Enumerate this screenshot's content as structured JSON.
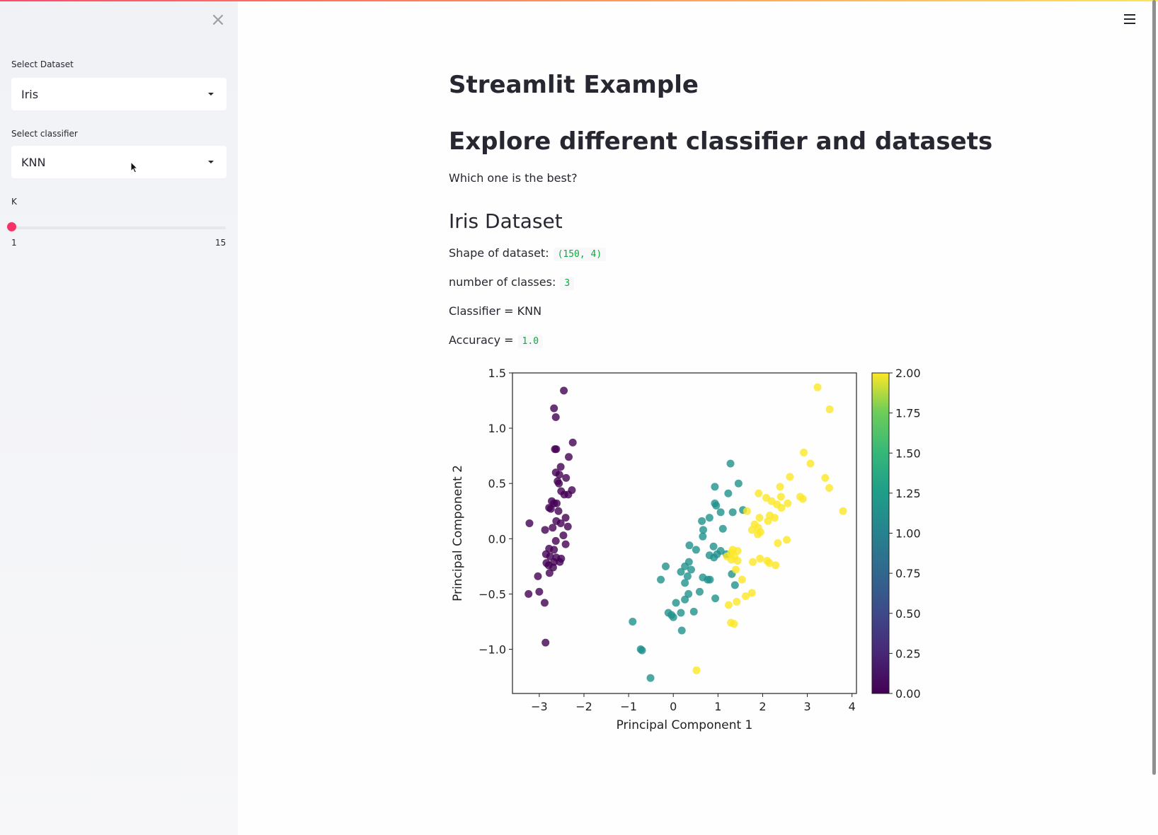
{
  "sidebar": {
    "close_icon": "close-icon",
    "dataset_label": "Select Dataset",
    "dataset_value": "Iris",
    "classifier_label": "Select classifier",
    "classifier_value": "KNN",
    "k_label": "K",
    "k_value": 1,
    "k_min": "1",
    "k_max": "15",
    "accent_color": "#f63366"
  },
  "header": {
    "menu_icon": "hamburger-menu-icon"
  },
  "main": {
    "title": "Streamlit Example",
    "subtitle": "Explore different classifier and datasets",
    "question": "Which one is the best?",
    "dataset_heading": "Iris Dataset",
    "shape_label": "Shape of dataset:",
    "shape_value": "(150, 4)",
    "classes_label": "number of classes:",
    "classes_value": "3",
    "classifier_text": "Classifier = KNN",
    "accuracy_label": "Accuracy =",
    "accuracy_value": "1.0"
  },
  "chart_data": {
    "type": "scatter",
    "xlabel": "Principal Component 1",
    "ylabel": "Principal Component 2",
    "xlim": [
      -3.6,
      4.1
    ],
    "ylim": [
      -1.4,
      1.5
    ],
    "x_ticks": [
      "−3",
      "−2",
      "−1",
      "0",
      "1",
      "2",
      "3",
      "4"
    ],
    "x_tick_values": [
      -3,
      -2,
      -1,
      0,
      1,
      2,
      3,
      4
    ],
    "y_ticks": [
      "1.5",
      "1.0",
      "0.5",
      "0.0",
      "−0.5",
      "−1.0"
    ],
    "y_tick_values": [
      1.5,
      1.0,
      0.5,
      0.0,
      -0.5,
      -1.0
    ],
    "colorbar_ticks": [
      "2.00",
      "1.75",
      "1.50",
      "1.25",
      "1.00",
      "0.75",
      "0.50",
      "0.25",
      "0.00"
    ],
    "colorbar_range": [
      0,
      2
    ],
    "colormap": "viridis",
    "class_colors": [
      "#440154",
      "#21918c",
      "#fde725"
    ],
    "points": [
      {
        "x": -2.45,
        "y": 1.34,
        "c": 0
      },
      {
        "x": -2.67,
        "y": 1.18,
        "c": 0
      },
      {
        "x": -2.63,
        "y": 1.1,
        "c": 0
      },
      {
        "x": -2.25,
        "y": 0.87,
        "c": 0
      },
      {
        "x": -2.65,
        "y": 0.81,
        "c": 0
      },
      {
        "x": -2.62,
        "y": 0.81,
        "c": 0
      },
      {
        "x": -2.34,
        "y": 0.74,
        "c": 0
      },
      {
        "x": -2.52,
        "y": 0.65,
        "c": 0
      },
      {
        "x": -2.63,
        "y": 0.6,
        "c": 0
      },
      {
        "x": -2.55,
        "y": 0.58,
        "c": 0
      },
      {
        "x": -2.4,
        "y": 0.55,
        "c": 0
      },
      {
        "x": -2.59,
        "y": 0.52,
        "c": 0
      },
      {
        "x": -2.56,
        "y": 0.5,
        "c": 0
      },
      {
        "x": -2.27,
        "y": 0.44,
        "c": 0
      },
      {
        "x": -2.51,
        "y": 0.43,
        "c": 0
      },
      {
        "x": -2.44,
        "y": 0.4,
        "c": 0
      },
      {
        "x": -2.35,
        "y": 0.4,
        "c": 0
      },
      {
        "x": -2.72,
        "y": 0.34,
        "c": 0
      },
      {
        "x": -2.67,
        "y": 0.32,
        "c": 0
      },
      {
        "x": -2.61,
        "y": 0.32,
        "c": 0
      },
      {
        "x": -2.78,
        "y": 0.28,
        "c": 0
      },
      {
        "x": -2.74,
        "y": 0.27,
        "c": 0
      },
      {
        "x": -2.57,
        "y": 0.25,
        "c": 0
      },
      {
        "x": -2.41,
        "y": 0.19,
        "c": 0
      },
      {
        "x": -2.62,
        "y": 0.16,
        "c": 0
      },
      {
        "x": -2.52,
        "y": 0.14,
        "c": 0
      },
      {
        "x": -2.36,
        "y": 0.11,
        "c": 0
      },
      {
        "x": -3.22,
        "y": 0.14,
        "c": 0
      },
      {
        "x": -2.87,
        "y": 0.08,
        "c": 0
      },
      {
        "x": -2.7,
        "y": 0.1,
        "c": 0
      },
      {
        "x": -2.46,
        "y": 0.03,
        "c": 0
      },
      {
        "x": -2.63,
        "y": -0.02,
        "c": 0
      },
      {
        "x": -2.41,
        "y": -0.05,
        "c": 0
      },
      {
        "x": -2.78,
        "y": -0.09,
        "c": 0
      },
      {
        "x": -2.67,
        "y": -0.1,
        "c": 0
      },
      {
        "x": -2.85,
        "y": -0.14,
        "c": 0
      },
      {
        "x": -2.76,
        "y": -0.16,
        "c": 0
      },
      {
        "x": -2.62,
        "y": -0.17,
        "c": 0
      },
      {
        "x": -2.51,
        "y": -0.18,
        "c": 0
      },
      {
        "x": -2.84,
        "y": -0.22,
        "c": 0
      },
      {
        "x": -2.67,
        "y": -0.21,
        "c": 0
      },
      {
        "x": -2.54,
        "y": -0.21,
        "c": 0
      },
      {
        "x": -2.79,
        "y": -0.24,
        "c": 0
      },
      {
        "x": -2.69,
        "y": -0.26,
        "c": 0
      },
      {
        "x": -3.03,
        "y": -0.34,
        "c": 0
      },
      {
        "x": -2.77,
        "y": -0.31,
        "c": 0
      },
      {
        "x": -3.24,
        "y": -0.5,
        "c": 0
      },
      {
        "x": -3.0,
        "y": -0.48,
        "c": 0
      },
      {
        "x": -2.88,
        "y": -0.58,
        "c": 0
      },
      {
        "x": -2.86,
        "y": -0.94,
        "c": 0
      },
      {
        "x": 1.28,
        "y": 0.68,
        "c": 1
      },
      {
        "x": 0.93,
        "y": 0.47,
        "c": 1
      },
      {
        "x": 1.46,
        "y": 0.5,
        "c": 1
      },
      {
        "x": 1.23,
        "y": 0.41,
        "c": 1
      },
      {
        "x": 0.93,
        "y": 0.32,
        "c": 1
      },
      {
        "x": 0.96,
        "y": 0.3,
        "c": 1
      },
      {
        "x": 1.56,
        "y": 0.26,
        "c": 1
      },
      {
        "x": 1.33,
        "y": 0.24,
        "c": 1
      },
      {
        "x": 1.06,
        "y": 0.24,
        "c": 1
      },
      {
        "x": 0.81,
        "y": 0.19,
        "c": 1
      },
      {
        "x": 0.64,
        "y": 0.16,
        "c": 1
      },
      {
        "x": 1.11,
        "y": 0.09,
        "c": 1
      },
      {
        "x": 0.67,
        "y": 0.08,
        "c": 1
      },
      {
        "x": 0.66,
        "y": 0.02,
        "c": 1
      },
      {
        "x": 0.36,
        "y": -0.06,
        "c": 1
      },
      {
        "x": 0.9,
        "y": -0.07,
        "c": 1
      },
      {
        "x": 0.51,
        "y": -0.1,
        "c": 1
      },
      {
        "x": 1.06,
        "y": -0.11,
        "c": 1
      },
      {
        "x": 0.98,
        "y": -0.14,
        "c": 1
      },
      {
        "x": 0.81,
        "y": -0.15,
        "c": 1
      },
      {
        "x": 0.91,
        "y": -0.17,
        "c": 1
      },
      {
        "x": 0.35,
        "y": -0.21,
        "c": 1
      },
      {
        "x": -0.17,
        "y": -0.25,
        "c": 1
      },
      {
        "x": 0.26,
        "y": -0.25,
        "c": 1
      },
      {
        "x": 0.4,
        "y": -0.28,
        "c": 1
      },
      {
        "x": 0.17,
        "y": -0.3,
        "c": 1
      },
      {
        "x": 0.32,
        "y": -0.34,
        "c": 1
      },
      {
        "x": 0.66,
        "y": -0.35,
        "c": 1
      },
      {
        "x": 0.82,
        "y": -0.37,
        "c": 1
      },
      {
        "x": -0.28,
        "y": -0.37,
        "c": 1
      },
      {
        "x": 0.26,
        "y": -0.4,
        "c": 1
      },
      {
        "x": 1.31,
        "y": -0.32,
        "c": 1
      },
      {
        "x": 1.38,
        "y": -0.42,
        "c": 1
      },
      {
        "x": 0.59,
        "y": -0.48,
        "c": 1
      },
      {
        "x": 0.34,
        "y": -0.5,
        "c": 1
      },
      {
        "x": 0.94,
        "y": -0.54,
        "c": 1
      },
      {
        "x": 0.26,
        "y": -0.55,
        "c": 1
      },
      {
        "x": 0.06,
        "y": -0.58,
        "c": 1
      },
      {
        "x": -0.11,
        "y": -0.67,
        "c": 1
      },
      {
        "x": 0.17,
        "y": -0.67,
        "c": 1
      },
      {
        "x": 0.46,
        "y": -0.66,
        "c": 1
      },
      {
        "x": -0.04,
        "y": -0.69,
        "c": 1
      },
      {
        "x": 0.0,
        "y": -0.71,
        "c": 1
      },
      {
        "x": 0.19,
        "y": -0.83,
        "c": 1
      },
      {
        "x": -0.91,
        "y": -0.75,
        "c": 1
      },
      {
        "x": -0.73,
        "y": -1.0,
        "c": 1
      },
      {
        "x": -0.7,
        "y": -1.01,
        "c": 1
      },
      {
        "x": -0.51,
        "y": -1.26,
        "c": 1
      },
      {
        "x": 1.19,
        "y": -0.14,
        "c": 1
      },
      {
        "x": 0.77,
        "y": -0.37,
        "c": 1
      },
      {
        "x": 3.23,
        "y": 1.37,
        "c": 2
      },
      {
        "x": 3.5,
        "y": 1.17,
        "c": 2
      },
      {
        "x": 2.92,
        "y": 0.78,
        "c": 2
      },
      {
        "x": 3.07,
        "y": 0.68,
        "c": 2
      },
      {
        "x": 3.4,
        "y": 0.55,
        "c": 2
      },
      {
        "x": 3.49,
        "y": 0.46,
        "c": 2
      },
      {
        "x": 2.61,
        "y": 0.56,
        "c": 2
      },
      {
        "x": 2.39,
        "y": 0.47,
        "c": 2
      },
      {
        "x": 1.91,
        "y": 0.41,
        "c": 2
      },
      {
        "x": 2.08,
        "y": 0.37,
        "c": 2
      },
      {
        "x": 2.41,
        "y": 0.38,
        "c": 2
      },
      {
        "x": 2.84,
        "y": 0.38,
        "c": 2
      },
      {
        "x": 2.9,
        "y": 0.36,
        "c": 2
      },
      {
        "x": 2.2,
        "y": 0.34,
        "c": 2
      },
      {
        "x": 2.32,
        "y": 0.31,
        "c": 2
      },
      {
        "x": 2.56,
        "y": 0.32,
        "c": 2
      },
      {
        "x": 3.8,
        "y": 0.25,
        "c": 2
      },
      {
        "x": 2.42,
        "y": 0.28,
        "c": 2
      },
      {
        "x": 1.65,
        "y": 0.25,
        "c": 2
      },
      {
        "x": 2.16,
        "y": 0.21,
        "c": 2
      },
      {
        "x": 1.93,
        "y": 0.19,
        "c": 2
      },
      {
        "x": 2.27,
        "y": 0.19,
        "c": 2
      },
      {
        "x": 2.12,
        "y": 0.16,
        "c": 2
      },
      {
        "x": 1.82,
        "y": 0.13,
        "c": 2
      },
      {
        "x": 1.9,
        "y": 0.1,
        "c": 2
      },
      {
        "x": 1.76,
        "y": 0.08,
        "c": 2
      },
      {
        "x": 1.95,
        "y": 0.06,
        "c": 2
      },
      {
        "x": 1.89,
        "y": 0.04,
        "c": 2
      },
      {
        "x": 2.54,
        "y": -0.01,
        "c": 2
      },
      {
        "x": 2.34,
        "y": -0.04,
        "c": 2
      },
      {
        "x": 1.33,
        "y": -0.1,
        "c": 2
      },
      {
        "x": 1.44,
        "y": -0.11,
        "c": 2
      },
      {
        "x": 1.29,
        "y": -0.13,
        "c": 2
      },
      {
        "x": 1.37,
        "y": -0.16,
        "c": 2
      },
      {
        "x": 1.2,
        "y": -0.16,
        "c": 2
      },
      {
        "x": 1.44,
        "y": -0.2,
        "c": 2
      },
      {
        "x": 1.3,
        "y": -0.19,
        "c": 2
      },
      {
        "x": 1.78,
        "y": -0.21,
        "c": 2
      },
      {
        "x": 1.94,
        "y": -0.18,
        "c": 2
      },
      {
        "x": 2.1,
        "y": -0.2,
        "c": 2
      },
      {
        "x": 2.15,
        "y": -0.22,
        "c": 2
      },
      {
        "x": 2.29,
        "y": -0.24,
        "c": 2
      },
      {
        "x": 1.4,
        "y": -0.28,
        "c": 2
      },
      {
        "x": 1.54,
        "y": -0.37,
        "c": 2
      },
      {
        "x": 1.76,
        "y": -0.49,
        "c": 2
      },
      {
        "x": 1.62,
        "y": -0.52,
        "c": 2
      },
      {
        "x": 1.42,
        "y": -0.57,
        "c": 2
      },
      {
        "x": 1.24,
        "y": -0.6,
        "c": 2
      },
      {
        "x": 1.29,
        "y": -0.76,
        "c": 2
      },
      {
        "x": 1.36,
        "y": -0.77,
        "c": 2
      },
      {
        "x": 0.52,
        "y": -1.19,
        "c": 2
      }
    ]
  }
}
